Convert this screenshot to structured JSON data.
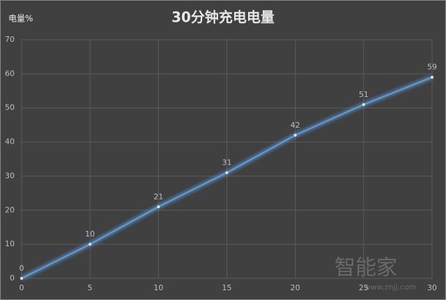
{
  "chart_data": {
    "type": "line",
    "title": "30分钟充电电量",
    "y_label": "电量%",
    "x": [
      0,
      5,
      10,
      15,
      20,
      25,
      30
    ],
    "values": [
      0,
      10,
      21,
      31,
      42,
      51,
      59
    ],
    "color": "#5b9bd5",
    "xlim": [
      0,
      30
    ],
    "xticks": [
      0,
      5,
      10,
      15,
      20,
      25,
      30
    ],
    "ylim": [
      0,
      70
    ],
    "yticks": [
      0,
      10,
      20,
      30,
      40,
      50,
      60,
      70
    ],
    "grid": true,
    "watermark": {
      "brand": "智能家",
      "url": "www.znjj.com"
    }
  }
}
